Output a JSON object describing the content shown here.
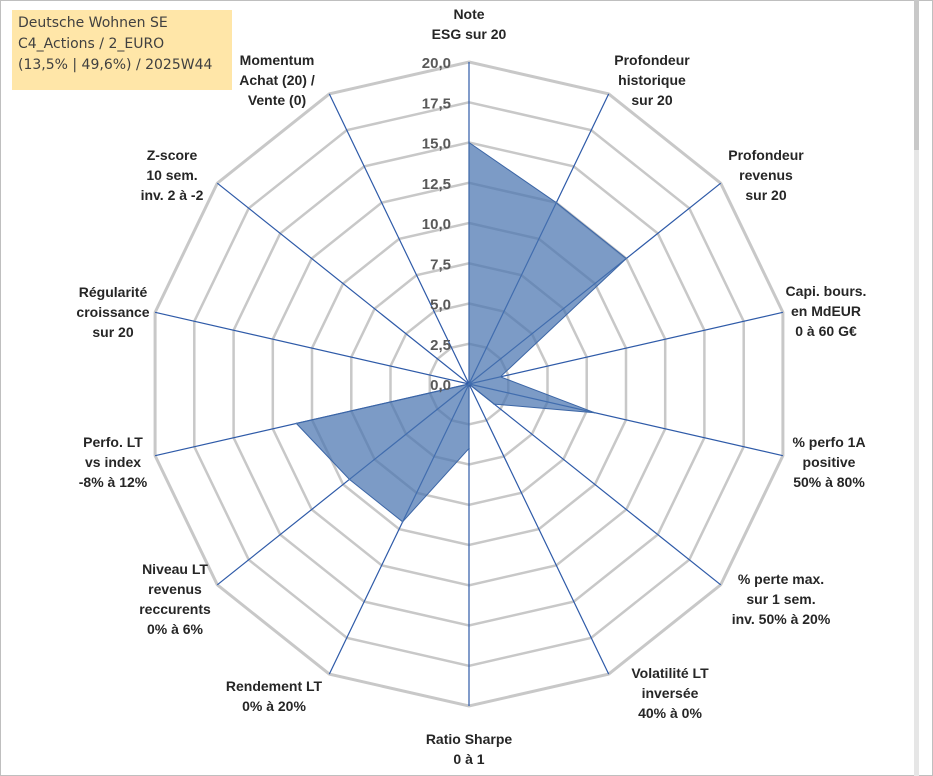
{
  "title_box": {
    "line1": "Deutsche Wohnen SE",
    "line2": "C4_Actions / 2_EURO",
    "line3": "(13,5% | 49,6%) / 2025W44"
  },
  "chart_data": {
    "type": "radar",
    "title": "",
    "rlim": [
      0,
      20
    ],
    "ticks": [
      "0,0",
      "2,5",
      "5,0",
      "7,5",
      "10,0",
      "12,5",
      "15,0",
      "17,5",
      "20,0"
    ],
    "tick_values": [
      0,
      2.5,
      5,
      7.5,
      10,
      12.5,
      15,
      17.5,
      20
    ],
    "grid": true,
    "categories": [
      [
        "Note",
        "ESG sur 20"
      ],
      [
        "Profondeur",
        "historique",
        "sur 20"
      ],
      [
        "Profondeur",
        "revenus",
        "sur 20"
      ],
      [
        "Capi. bours.",
        "en MdEUR",
        "0 à 60 G€"
      ],
      [
        "% perfo 1A",
        "positive",
        "50% à 80%"
      ],
      [
        "% perte max.",
        "sur 1 sem.",
        "inv. 50% à 20%"
      ],
      [
        "Volatilité LT",
        "inversée",
        "40% à 0%"
      ],
      [
        "Ratio Sharpe",
        "0 à 1"
      ],
      [
        "Rendement LT",
        "0% à 20%"
      ],
      [
        "Niveau LT",
        "revenus",
        "reccurents",
        "0% à 6%"
      ],
      [
        "Perfo. LT",
        "vs index",
        "-8% à 12%"
      ],
      [
        "Régularité",
        "croissance",
        "sur 20"
      ],
      [
        "Z-score",
        "10 sem.",
        "inv. 2 à -2"
      ],
      [
        "Momentum",
        "Achat (20) /",
        "Vente (0)"
      ]
    ],
    "series": [
      {
        "values": [
          15.0,
          12.5,
          12.5,
          2.0,
          8.0,
          2.0,
          0.0,
          4.0,
          9.5,
          9.5,
          11.0,
          0.0,
          0.0,
          0.0
        ],
        "color": "#4a75b0"
      }
    ],
    "colors": {
      "fill": "#4a75b0",
      "spokes": "#2e5aa8",
      "grid": "#c8c8c8"
    }
  }
}
